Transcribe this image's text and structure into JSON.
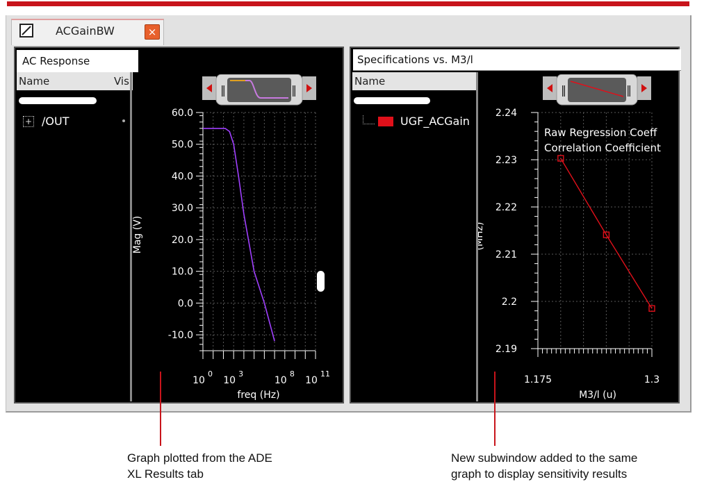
{
  "tab": {
    "title": "ACGainBW",
    "close_glyph": "×"
  },
  "left_pane": {
    "title": "AC Response",
    "columns": [
      "Name",
      "Vis"
    ],
    "tree_item": "/OUT",
    "expand_glyph": "+",
    "chart": {
      "ylabel": "Mag (V)",
      "xlabel": "freq (Hz)",
      "y_ticks": [
        "60.0",
        "50.0",
        "40.0",
        "30.0",
        "20.0",
        "10.0",
        "0.0",
        "-10.0"
      ],
      "x_ticks": [
        {
          "base": "10",
          "exp": "0"
        },
        {
          "base": "10",
          "exp": "3"
        },
        {
          "base": "10",
          "exp": "8"
        },
        {
          "base": "10",
          "exp": "11"
        }
      ]
    }
  },
  "right_pane": {
    "title": "Specifications vs. M3/l",
    "columns": [
      "Name"
    ],
    "tree_item": "UGF_ACGain",
    "chart": {
      "ylabel": "(MHz)",
      "xlabel": "M3/l (u)",
      "y_ticks": [
        "2.24",
        "2.23",
        "2.22",
        "2.21",
        "2.2",
        "2.19"
      ],
      "x_ticks": [
        "1.175",
        "1.3"
      ],
      "annotations": [
        "Raw Regression Coeff",
        "Correlation Coefficient"
      ]
    }
  },
  "chart_data": [
    {
      "type": "line",
      "xlabel": "freq (Hz)",
      "ylabel": "Mag (V)",
      "x_scale": "log",
      "xlim": [
        1,
        100000000000
      ],
      "ylim": [
        -15,
        60
      ],
      "grid": true,
      "series": [
        {
          "color": "#a040ff",
          "x": [
            1,
            30,
            150,
            400,
            1000,
            3000,
            10000,
            100000,
            1000000,
            10000000
          ],
          "y": [
            55,
            55,
            55,
            54,
            50,
            40,
            28,
            10,
            0,
            -12
          ]
        }
      ]
    },
    {
      "type": "line",
      "xlabel": "M3/l (u)",
      "ylabel": "(MHz)",
      "xlim": [
        1.175,
        1.3
      ],
      "ylim": [
        2.19,
        2.24
      ],
      "grid": true,
      "annotations": [
        "Raw Regression Coeff",
        "Correlation Coefficient"
      ],
      "series": [
        {
          "name": "UGF_ACGain",
          "color": "#e0101a",
          "x": [
            1.2,
            1.25,
            1.3
          ],
          "y": [
            2.2303,
            2.2141,
            2.1985
          ]
        }
      ]
    }
  ],
  "callouts": {
    "left": [
      "Graph plotted from the ADE",
      "XL Results tab"
    ],
    "right": [
      "New subwindow added to the same",
      "graph to display sensitivity results"
    ]
  },
  "colors": {
    "accent_red": "#c8141b",
    "plot_bg": "#000000",
    "grid": "#5a5a5a",
    "ac_curve": "#a040ff",
    "spec_curve": "#e0101a"
  },
  "icons": [
    "window-icon",
    "close-icon",
    "expand-icon",
    "legend-swatch-icon",
    "navigator-left-arrow-icon",
    "navigator-right-arrow-icon"
  ]
}
